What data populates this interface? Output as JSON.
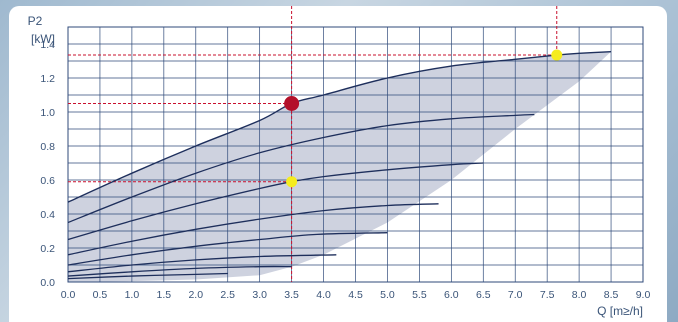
{
  "chart_data": {
    "type": "line",
    "title": "",
    "ylabel_line1": "P2",
    "ylabel_line2": "[kW]",
    "xlabel": "Q [m≥/h]",
    "xlim": [
      0,
      9.0
    ],
    "ylim": [
      0,
      1.5
    ],
    "x_ticks": [
      "0.0",
      "0.5",
      "1.0",
      "1.5",
      "2.0",
      "2.5",
      "3.0",
      "3.5",
      "4.0",
      "4.5",
      "5.0",
      "5.5",
      "6.0",
      "6.5",
      "7.0",
      "7.5",
      "8.0",
      "8.5",
      "9.0"
    ],
    "y_ticks": [
      "0.0",
      "0.2",
      "0.4",
      "0.6",
      "0.8",
      "1.0",
      "1.2",
      "1.4"
    ],
    "grid": true,
    "colors": {
      "curve": "#1e2f5c",
      "envelope_fill": "#c9cddb",
      "grid": "#2f4a7a",
      "guide": "#c8102e",
      "marker_main": "#b3102a",
      "marker_secondary": "#f5ec1e"
    },
    "envelope": {
      "upper": [
        [
          0,
          0.47
        ],
        [
          1,
          0.64
        ],
        [
          2,
          0.8
        ],
        [
          3,
          0.95
        ],
        [
          3.5,
          1.05
        ],
        [
          4,
          1.1
        ],
        [
          5,
          1.2
        ],
        [
          6,
          1.27
        ],
        [
          7,
          1.31
        ],
        [
          7.65,
          1.335
        ],
        [
          8,
          1.345
        ],
        [
          8.5,
          1.355
        ]
      ],
      "lower": [
        [
          8.5,
          1.355
        ],
        [
          8.0,
          1.18
        ],
        [
          7.0,
          0.9
        ],
        [
          6.0,
          0.6
        ],
        [
          5.0,
          0.35
        ],
        [
          4.0,
          0.16
        ],
        [
          3.5,
          0.09
        ],
        [
          3.0,
          0.04
        ],
        [
          2.0,
          0.015
        ],
        [
          1.0,
          0.005
        ],
        [
          0,
          0.0
        ]
      ]
    },
    "series": [
      {
        "values": [
          [
            0,
            0.47
          ],
          [
            1,
            0.64
          ],
          [
            2,
            0.8
          ],
          [
            3,
            0.95
          ],
          [
            3.5,
            1.05
          ],
          [
            4,
            1.1
          ],
          [
            5,
            1.2
          ],
          [
            6,
            1.27
          ],
          [
            7,
            1.31
          ],
          [
            7.65,
            1.335
          ],
          [
            8,
            1.345
          ],
          [
            8.5,
            1.355
          ]
        ]
      },
      {
        "values": [
          [
            0,
            0.35
          ],
          [
            1,
            0.5
          ],
          [
            2,
            0.64
          ],
          [
            3,
            0.76
          ],
          [
            4,
            0.85
          ],
          [
            5,
            0.92
          ],
          [
            6,
            0.96
          ],
          [
            7,
            0.98
          ],
          [
            7.3,
            0.985
          ]
        ]
      },
      {
        "values": [
          [
            0,
            0.25
          ],
          [
            1,
            0.36
          ],
          [
            2,
            0.46
          ],
          [
            3,
            0.55
          ],
          [
            3.5,
            0.59
          ],
          [
            4,
            0.62
          ],
          [
            5,
            0.66
          ],
          [
            6,
            0.69
          ],
          [
            6.5,
            0.7
          ]
        ]
      },
      {
        "values": [
          [
            0,
            0.16
          ],
          [
            1,
            0.24
          ],
          [
            2,
            0.31
          ],
          [
            3,
            0.37
          ],
          [
            4,
            0.42
          ],
          [
            5,
            0.45
          ],
          [
            5.8,
            0.46
          ]
        ]
      },
      {
        "values": [
          [
            0,
            0.1
          ],
          [
            1,
            0.16
          ],
          [
            2,
            0.21
          ],
          [
            3,
            0.25
          ],
          [
            3.9,
            0.28
          ],
          [
            5.0,
            0.29
          ]
        ]
      },
      {
        "values": [
          [
            0,
            0.06
          ],
          [
            1,
            0.1
          ],
          [
            2,
            0.13
          ],
          [
            3,
            0.15
          ],
          [
            4.2,
            0.16
          ]
        ]
      },
      {
        "values": [
          [
            0,
            0.035
          ],
          [
            1,
            0.06
          ],
          [
            2,
            0.08
          ],
          [
            3,
            0.09
          ],
          [
            3.5,
            0.09
          ]
        ]
      },
      {
        "values": [
          [
            0,
            0.02
          ],
          [
            1,
            0.035
          ],
          [
            2,
            0.045
          ],
          [
            2.5,
            0.05
          ]
        ]
      }
    ],
    "markers": [
      {
        "name": "operating-point",
        "x": 3.5,
        "y": 1.05,
        "color": "#b3102a",
        "size": "large"
      },
      {
        "name": "operating-point-secondary",
        "x": 3.5,
        "y": 0.59,
        "color": "#f5ec1e",
        "size": "small"
      },
      {
        "name": "max-point",
        "x": 7.65,
        "y": 1.335,
        "color": "#f5ec1e",
        "size": "small"
      }
    ],
    "guides": [
      {
        "type": "vertical",
        "x": 3.5
      },
      {
        "type": "horizontal",
        "y": 1.05,
        "x_to": 3.5
      },
      {
        "type": "horizontal",
        "y": 0.59,
        "x_to": 3.5
      },
      {
        "type": "vertical",
        "x": 7.65,
        "y_from": 1.335
      },
      {
        "type": "horizontal",
        "y": 1.335,
        "x_to": 7.65
      }
    ]
  }
}
